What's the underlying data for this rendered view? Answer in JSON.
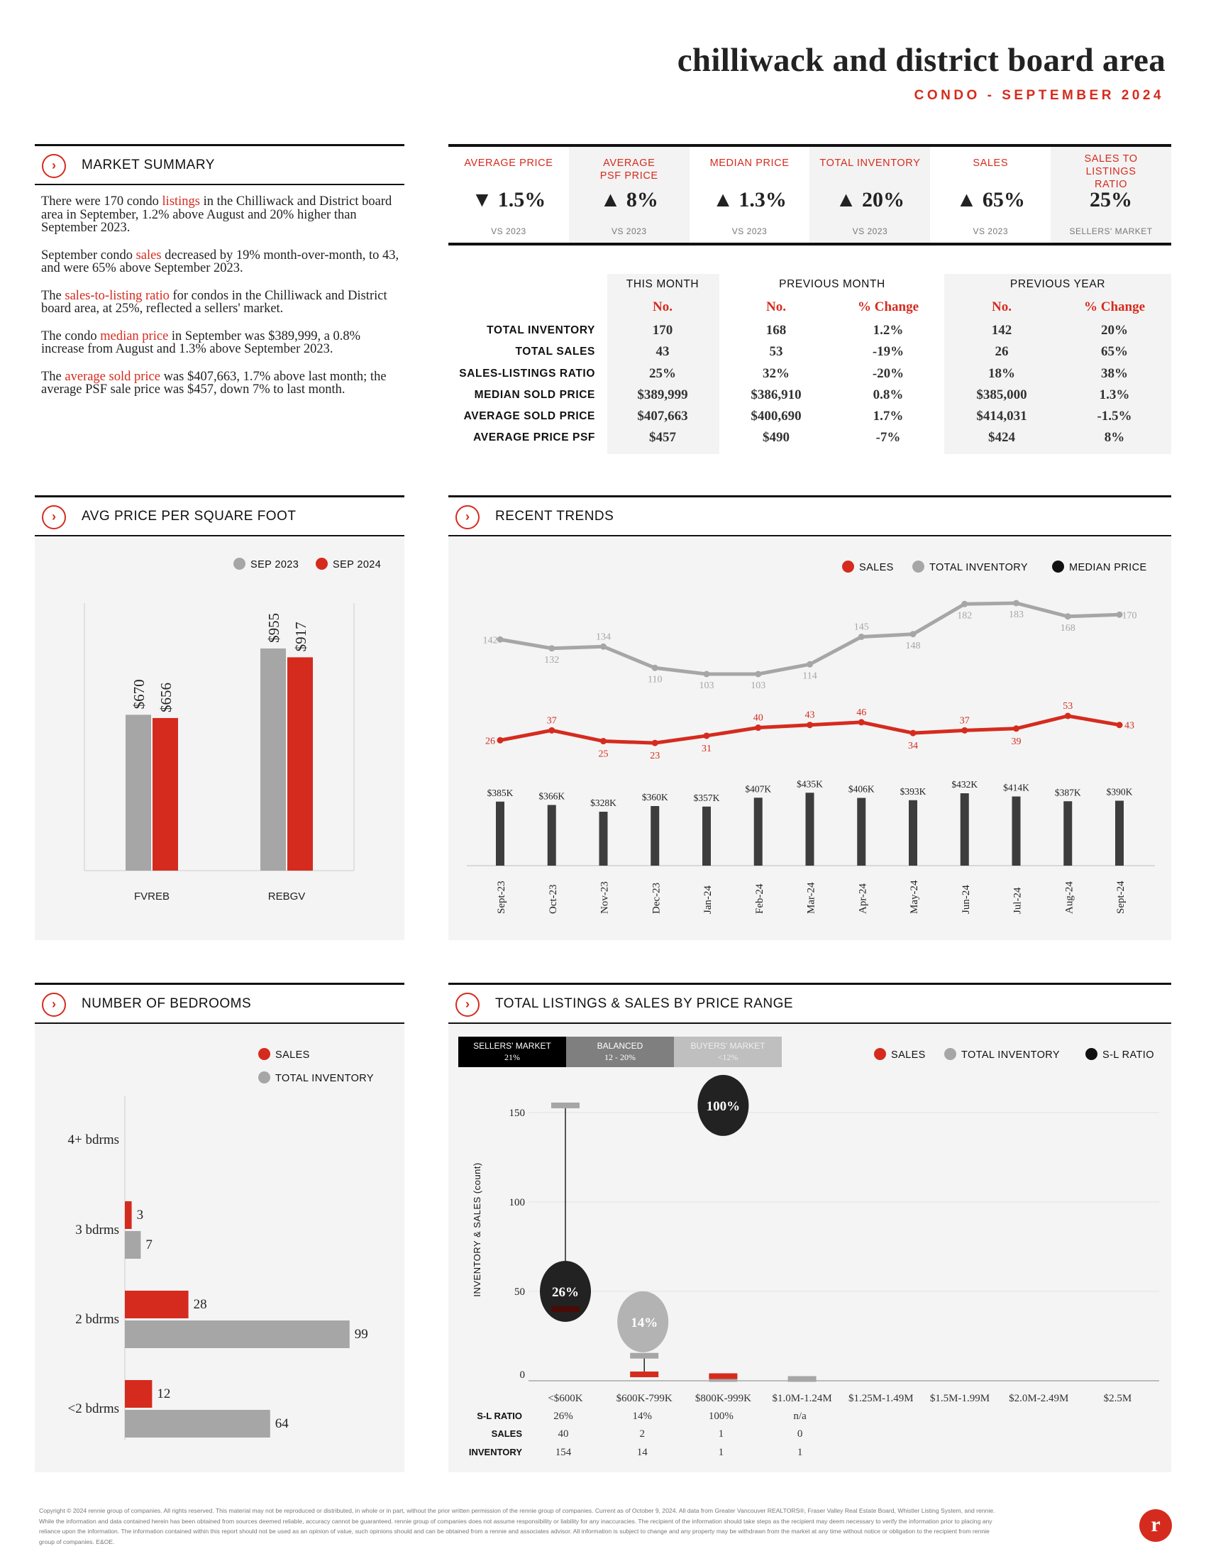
{
  "header": {
    "title": "chilliwack and district board area",
    "subtitle": "CONDO - SEPTEMBER 2024"
  },
  "colors": {
    "accent": "#d52b1e",
    "gray": "#a6a6a6",
    "dark": "#3d3d3d"
  },
  "market_summary": {
    "title": "MARKET SUMMARY",
    "paragraphs": [
      {
        "a": "There were 170 condo ",
        "hl": "listings",
        "b": " in the Chilliwack and District board area in September, 1.2% above August and 20% higher than September 2023."
      },
      {
        "a": "September condo ",
        "hl": "sales",
        "b": " decreased by 19% month-over-month, to 43, and were 65% above September 2023."
      },
      {
        "a": "The ",
        "hl": "sales-to-listing ratio",
        "b": " for condos in the Chilliwack and District board area, at 25%, reflected a sellers' market."
      },
      {
        "a": "The condo ",
        "hl": "median price",
        "b": " in September was $389,999, a 0.8% increase from August and 1.3% above September 2023."
      },
      {
        "a": "The ",
        "hl": "average sold price",
        "b": " was $407,663, 1.7% above last month; the average PSF sale price was $457, down 7% to last month."
      }
    ]
  },
  "stats": [
    {
      "label": "AVERAGE PRICE",
      "value": "▼ 1.5%",
      "sub": "VS 2023"
    },
    {
      "label": "AVERAGE PSF PRICE",
      "value": "▲ 8%",
      "sub": "VS 2023"
    },
    {
      "label": "MEDIAN PRICE",
      "value": "▲ 1.3%",
      "sub": "VS 2023"
    },
    {
      "label": "TOTAL INVENTORY",
      "value": "▲ 20%",
      "sub": "VS 2023"
    },
    {
      "label": "SALES",
      "value": "▲ 65%",
      "sub": "VS 2023"
    },
    {
      "label": "SALES TO LISTINGS RATIO",
      "value": "25%",
      "sub": "SELLERS' MARKET"
    }
  ],
  "table": {
    "groups": [
      "THIS MONTH",
      "PREVIOUS MONTH",
      "PREVIOUS YEAR"
    ],
    "subheaders": [
      "No.",
      "No.",
      "% Change",
      "No.",
      "% Change"
    ],
    "rows": [
      {
        "label": "TOTAL INVENTORY",
        "cells": [
          "170",
          "168",
          "1.2%",
          "142",
          "20%"
        ]
      },
      {
        "label": "TOTAL SALES",
        "cells": [
          "43",
          "53",
          "-19%",
          "26",
          "65%"
        ]
      },
      {
        "label": "SALES-LISTINGS RATIO",
        "cells": [
          "25%",
          "32%",
          "-20%",
          "18%",
          "38%"
        ]
      },
      {
        "label": "MEDIAN SOLD PRICE",
        "cells": [
          "$389,999",
          "$386,910",
          "0.8%",
          "$385,000",
          "1.3%"
        ]
      },
      {
        "label": "AVERAGE SOLD PRICE",
        "cells": [
          "$407,663",
          "$400,690",
          "1.7%",
          "$414,031",
          "-1.5%"
        ]
      },
      {
        "label": "AVERAGE PRICE PSF",
        "cells": [
          "$457",
          "$490",
          "-7%",
          "$424",
          "8%"
        ]
      }
    ]
  },
  "sections": {
    "psf": "AVG PRICE PER SQUARE FOOT",
    "trends": "RECENT TRENDS",
    "bedrooms": "NUMBER OF BEDROOMS",
    "price_range": "TOTAL LISTINGS & SALES BY PRICE RANGE"
  },
  "chart_data": [
    {
      "id": "psf",
      "type": "bar",
      "categories": [
        "FVREB",
        "REBGV"
      ],
      "series": [
        {
          "name": "SEP 2023",
          "color": "#a6a6a6",
          "values": [
            670,
            955
          ],
          "labels": [
            "$670",
            "$955"
          ]
        },
        {
          "name": "SEP 2024",
          "color": "#d52b1e",
          "values": [
            656,
            917
          ],
          "labels": [
            "$656",
            "$917"
          ]
        }
      ],
      "ylim": [
        0,
        1150
      ],
      "legend": "top-right"
    },
    {
      "id": "trends",
      "type": "line",
      "categories": [
        "Sept-23",
        "Oct-23",
        "Nov-23",
        "Dec-23",
        "Jan-24",
        "Feb-24",
        "Mar-24",
        "Apr-24",
        "May-24",
        "Jun-24",
        "Jul-24",
        "Aug-24",
        "Sept-24"
      ],
      "legend": [
        "SALES",
        "TOTAL INVENTORY",
        "MEDIAN PRICE"
      ],
      "series": [
        {
          "name": "SALES",
          "color": "#d52b1e",
          "values": [
            26,
            37,
            25,
            23,
            31,
            40,
            43,
            46,
            34,
            37,
            39,
            53,
            43
          ]
        },
        {
          "name": "TOTAL INVENTORY",
          "color": "#a6a6a6",
          "values": [
            142,
            132,
            134,
            110,
            103,
            103,
            114,
            145,
            148,
            182,
            183,
            168,
            170
          ]
        },
        {
          "name": "MEDIAN PRICE",
          "color": "#3d3d3d",
          "values": [
            385,
            366,
            328,
            360,
            357,
            407,
            435,
            406,
            393,
            432,
            414,
            387,
            390
          ],
          "labels": [
            "$385K",
            "$366K",
            "$328K",
            "$360K",
            "$357K",
            "$407K",
            "$435K",
            "$406K",
            "$393K",
            "$432K",
            "$414K",
            "$387K",
            "$390K"
          ]
        }
      ]
    },
    {
      "id": "bedrooms",
      "type": "bar",
      "orientation": "horizontal",
      "categories": [
        "4+ bdrms",
        "3 bdrms",
        "2 bdrms",
        "<2 bdrms"
      ],
      "legend": [
        "SALES",
        "TOTAL INVENTORY"
      ],
      "series": [
        {
          "name": "SALES",
          "color": "#d52b1e",
          "values": [
            null,
            3,
            28,
            12
          ]
        },
        {
          "name": "TOTAL INVENTORY",
          "color": "#a6a6a6",
          "values": [
            null,
            7,
            99,
            64
          ]
        }
      ]
    },
    {
      "id": "price_range",
      "type": "scatter",
      "categories": [
        "<$600K",
        "$600K-799K",
        "$800K-999K",
        "$1.0M-1.24M",
        "$1.25M-1.49M",
        "$1.5M-1.99M",
        "$2.0M-2.49M",
        "$2.5M"
      ],
      "ylabel": "INVENTORY & SALES (count)",
      "ylim": [
        0,
        160
      ],
      "yticks": [
        0,
        50,
        100,
        150
      ],
      "legend": [
        "SALES",
        "TOTAL INVENTORY",
        "S-L RATIO"
      ],
      "market_legend": [
        {
          "name": "SELLERS' MARKET",
          "range": "21%",
          "color": "#000000"
        },
        {
          "name": "BALANCED",
          "range": "12 - 20%",
          "color": "#7f7f7f"
        },
        {
          "name": "BUYERS' MARKET",
          "range": "<12%",
          "color": "#bfbfbf"
        }
      ],
      "sl_ratio": [
        "26%",
        "14%",
        "100%",
        "n/a",
        "",
        "",
        "",
        ""
      ],
      "sales": [
        40,
        2,
        1,
        0,
        null,
        null,
        null,
        null
      ],
      "inventory": [
        154,
        14,
        1,
        1,
        null,
        null,
        null,
        null
      ],
      "bubbles": [
        {
          "index": 0,
          "label": "26%",
          "y": 50,
          "color": "#222222"
        },
        {
          "index": 1,
          "label": "14%",
          "y": 33,
          "color": "#b3b3b3"
        },
        {
          "index": 2,
          "label": "100%",
          "y": 154,
          "color": "#222222"
        }
      ],
      "row_labels": [
        "S-L RATIO",
        "SALES",
        "INVENTORY"
      ]
    }
  ],
  "footer": "Copyright © 2024 rennie group of companies. All rights reserved. This material may not be reproduced or distributed, in whole or in part, without the prior written permission of the rennie group of companies. Current as of October 9, 2024. All data from Greater Vancouver REALTORS®, Fraser Valley Real Estate Board, Whistler Listing System, and rennie. While the information and data contained herein has been obtained from sources deemed reliable, accuracy cannot be guaranteed. rennie group of companies does not assume responsibility or liability for any inaccuracies. The recipient of the information should take steps as the recipient may deem necessary to verify the information prior to placing any reliance upon the information. The information contained within this report should not be used as an opinion of value, such opinions should and can be obtained from a rennie and associates advisor. All information is subject to change and any property may be withdrawn from the market at any time without notice or obligation to the recipient from rennie group of companies. E&OE.",
  "logo": "r"
}
